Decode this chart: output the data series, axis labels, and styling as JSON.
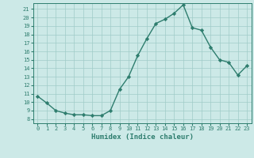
{
  "x": [
    0,
    1,
    2,
    3,
    4,
    5,
    6,
    7,
    8,
    9,
    10,
    11,
    12,
    13,
    14,
    15,
    16,
    17,
    18,
    19,
    20,
    21,
    22,
    23
  ],
  "y": [
    10.7,
    9.9,
    9.0,
    8.7,
    8.5,
    8.5,
    8.4,
    8.4,
    9.0,
    11.5,
    13.0,
    15.5,
    17.5,
    19.3,
    19.8,
    20.5,
    21.5,
    18.8,
    18.5,
    16.5,
    15.0,
    14.7,
    13.2,
    14.3
  ],
  "line_color": "#2e7d6e",
  "marker": "D",
  "marker_size": 2.2,
  "bg_color": "#cce9e7",
  "grid_color": "#a0ccc8",
  "xlabel": "Humidex (Indice chaleur)",
  "xlim": [
    -0.5,
    23.5
  ],
  "ylim": [
    7.5,
    21.7
  ],
  "yticks": [
    8,
    9,
    10,
    11,
    12,
    13,
    14,
    15,
    16,
    17,
    18,
    19,
    20,
    21
  ],
  "xticks": [
    0,
    1,
    2,
    3,
    4,
    5,
    6,
    7,
    8,
    9,
    10,
    11,
    12,
    13,
    14,
    15,
    16,
    17,
    18,
    19,
    20,
    21,
    22,
    23
  ],
  "tick_fontsize": 5.0,
  "xlabel_fontsize": 6.5,
  "line_width": 1.0
}
